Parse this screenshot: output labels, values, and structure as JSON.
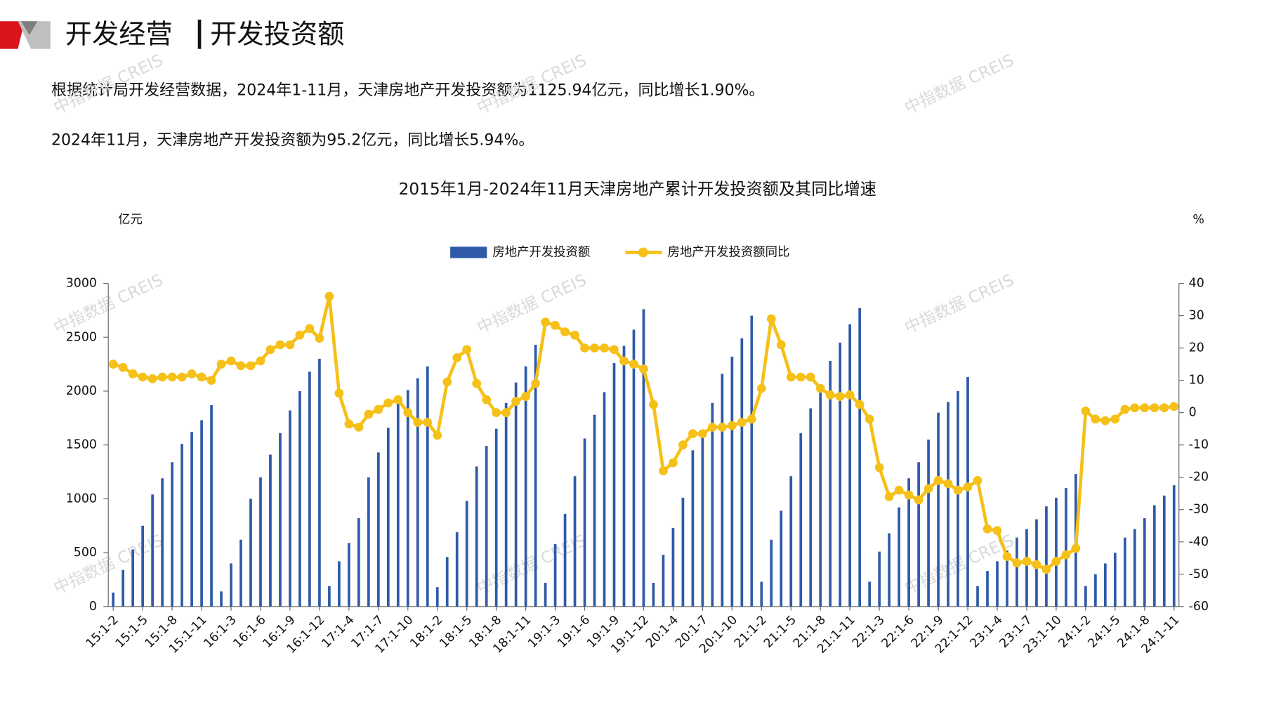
{
  "header": {
    "title_left": "开发经营",
    "title_right": "开发投资额"
  },
  "paragraphs": [
    "根据统计局开发经营数据，2024年1-11月，天津房地产开发投资额为1125.94亿元，同比增长1.90%。",
    "2024年11月，天津房地产开发投资额为95.2亿元，同比增长5.94%。"
  ],
  "watermark": "中指数据 CREIS",
  "chart_data": {
    "type": "bar_line",
    "title": "2015年1月-2024年11月天津房地产累计开发投资额及其同比增速",
    "y_label": "亿元",
    "y2_label": "%",
    "categories": [
      "15:1-2",
      null,
      null,
      "15:1-5",
      null,
      null,
      "15:1-8",
      null,
      null,
      "15:1-11",
      null,
      null,
      "16:1-3",
      null,
      null,
      "16:1-6",
      null,
      null,
      "16:1-9",
      null,
      null,
      "16:1-12",
      null,
      null,
      "17:1-4",
      null,
      null,
      "17:1-7",
      null,
      null,
      "17:1-10",
      null,
      null,
      "18:1-2",
      null,
      null,
      "18:1-5",
      null,
      null,
      "18:1-8",
      null,
      null,
      "18:1-11",
      null,
      null,
      "19:1-3",
      null,
      null,
      "19:1-6",
      null,
      null,
      "19:1-9",
      null,
      null,
      "19:1-12",
      null,
      null,
      "20:1-4",
      null,
      null,
      "20:1-7",
      null,
      null,
      "20:1-10",
      null,
      null,
      "21:1-2",
      null,
      null,
      "21:1-5",
      null,
      null,
      "21:1-8",
      null,
      null,
      "21:1-11",
      null,
      null,
      "22:1-3",
      null,
      null,
      "22:1-6",
      null,
      null,
      "22:1-9",
      null,
      null,
      "22:1-12",
      null,
      null,
      "23:1-4",
      null,
      null,
      "23:1-7",
      null,
      null,
      "23:1-10",
      null,
      null,
      "24:1-2",
      null,
      null,
      "24:1-5",
      null,
      null,
      "24:1-8",
      null,
      null,
      "24:1-11"
    ],
    "series": [
      {
        "name": "房地产开发投资额",
        "color": "#2e5aa8",
        "kind": "bar",
        "values": [
          130,
          340,
          530,
          750,
          1040,
          1190,
          1340,
          1510,
          1620,
          1730,
          1870,
          140,
          400,
          620,
          1000,
          1200,
          1410,
          1610,
          1820,
          2000,
          2180,
          2300,
          190,
          420,
          590,
          820,
          1200,
          1430,
          1660,
          1920,
          2010,
          2120,
          2230,
          180,
          460,
          690,
          980,
          1300,
          1490,
          1650,
          1890,
          2080,
          2230,
          2430,
          220,
          580,
          860,
          1210,
          1560,
          1780,
          1990,
          2260,
          2420,
          2570,
          2760,
          220,
          480,
          730,
          1010,
          1450,
          1640,
          1890,
          2160,
          2320,
          2490,
          2700,
          230,
          620,
          890,
          1210,
          1610,
          1840,
          2050,
          2280,
          2450,
          2620,
          2770,
          230,
          510,
          680,
          920,
          1190,
          1340,
          1550,
          1800,
          1900,
          2000,
          2130,
          190,
          330,
          420,
          520,
          640,
          720,
          810,
          930,
          1010,
          1100,
          1230,
          190,
          300,
          400,
          500,
          640,
          720,
          820,
          940,
          1030,
          1125.94
        ]
      },
      {
        "name": "房地产开发投资额同比",
        "color": "#f5c018",
        "kind": "line",
        "axis": "y2",
        "values": [
          15,
          14,
          12,
          11,
          10.5,
          11,
          11,
          11,
          12,
          11,
          10,
          15,
          16,
          14.5,
          14.5,
          16,
          19.5,
          21,
          21,
          24,
          26,
          23,
          36,
          6,
          -3.5,
          -4.5,
          -0.5,
          1,
          3,
          4,
          0,
          -3,
          -3,
          -7,
          9.5,
          17,
          19.5,
          9,
          4,
          0,
          0,
          3.5,
          5,
          9,
          28,
          27,
          25,
          24,
          20,
          20,
          20,
          19.5,
          16,
          15,
          13.5,
          2.5,
          -18,
          -15.5,
          -10,
          -6.5,
          -6.5,
          -4.5,
          -4.5,
          -4,
          -3,
          -2,
          7.5,
          29,
          21,
          11,
          11,
          11,
          7.5,
          5.5,
          5,
          5.5,
          2.5,
          -2,
          -17,
          -26,
          -24,
          -25.5,
          -27,
          -23.5,
          -21,
          -22,
          -24,
          -23,
          -21,
          -36,
          -36.5,
          -44.5,
          -46.5,
          -46,
          -47,
          -48.5,
          -46,
          -44,
          -42,
          0.5,
          -2,
          -2.5,
          -2,
          1,
          1.5,
          1.5,
          1.5,
          1.5,
          1.9
        ]
      }
    ],
    "ylim": [
      0,
      3000
    ],
    "yticks": [
      0,
      500,
      1000,
      1500,
      2000,
      2500,
      3000
    ],
    "y2lim": [
      -60,
      40
    ],
    "y2ticks": [
      -60,
      -50,
      -40,
      -30,
      -20,
      -10,
      0,
      10,
      20,
      30,
      40
    ],
    "legend": "top",
    "grid": false
  }
}
